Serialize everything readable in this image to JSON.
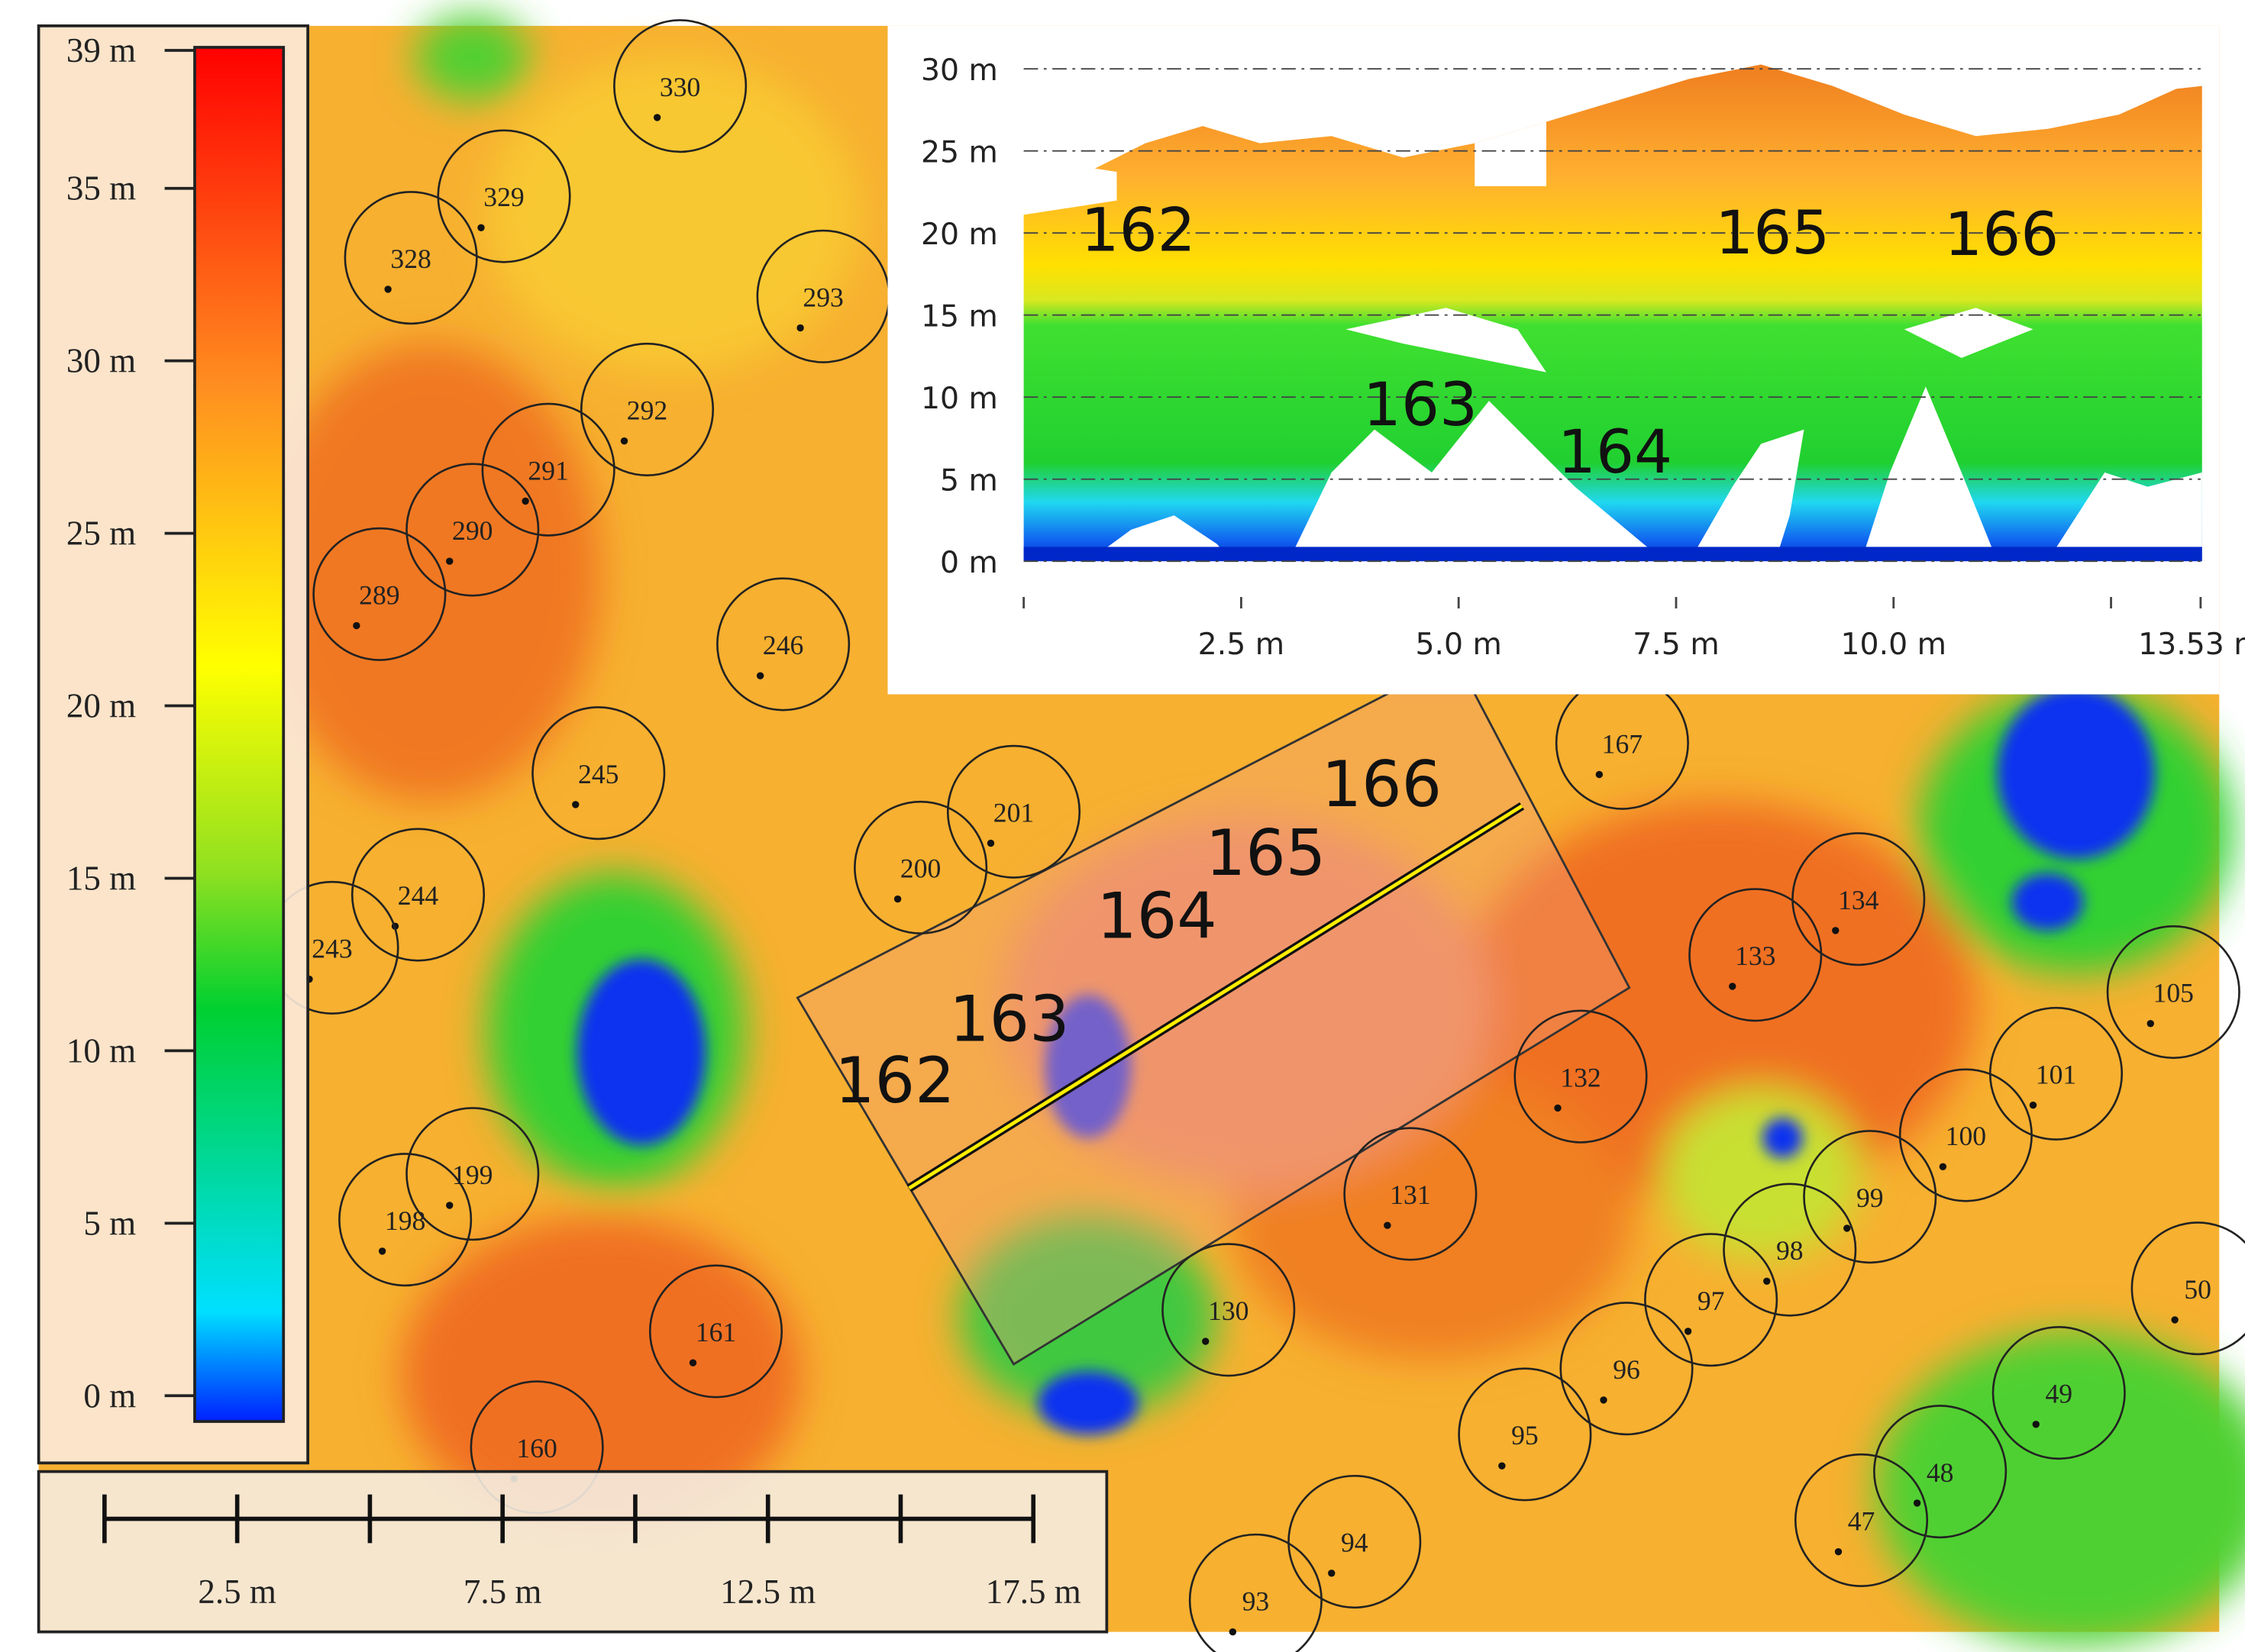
{
  "legend": {
    "ticks": [
      {
        "value": 39,
        "label": "39 m"
      },
      {
        "value": 35,
        "label": "35 m"
      },
      {
        "value": 30,
        "label": "30 m"
      },
      {
        "value": 25,
        "label": "25 m"
      },
      {
        "value": 20,
        "label": "20 m"
      },
      {
        "value": 15,
        "label": "15 m"
      },
      {
        "value": 10,
        "label": "10 m"
      },
      {
        "value": 5,
        "label": "5 m"
      },
      {
        "value": 0,
        "label": "0 m"
      }
    ]
  },
  "scale_bar": {
    "ticks": [
      0,
      2.5,
      5,
      7.5,
      10,
      12.5,
      15,
      17.5
    ],
    "labels": [
      {
        "value": 2.5,
        "label": "2.5 m"
      },
      {
        "value": 7.5,
        "label": "7.5 m"
      },
      {
        "value": 12.5,
        "label": "12.5 m"
      },
      {
        "value": 17.5,
        "label": "17.5 m"
      }
    ]
  },
  "trees": [
    "330",
    "329",
    "328",
    "293",
    "292",
    "291",
    "290",
    "289",
    "246",
    "245",
    "244",
    "243",
    "201",
    "200",
    "199",
    "198",
    "161",
    "160",
    "167",
    "134",
    "133",
    "132",
    "131",
    "130",
    "105",
    "101",
    "100",
    "99",
    "98",
    "97",
    "96",
    "95",
    "94",
    "93",
    "50",
    "49",
    "48",
    "47"
  ],
  "transect": {
    "labels": [
      "162",
      "163",
      "164",
      "165",
      "166"
    ]
  },
  "profile": {
    "ylim": [
      0,
      30
    ],
    "yticks": [
      {
        "value": 30,
        "label": "30 m"
      },
      {
        "value": 25,
        "label": "25 m"
      },
      {
        "value": 20,
        "label": "20 m"
      },
      {
        "value": 15,
        "label": "15 m"
      },
      {
        "value": 10,
        "label": "10 m"
      },
      {
        "value": 5,
        "label": "5 m"
      },
      {
        "value": 0,
        "label": "0 m"
      }
    ],
    "xlim": [
      0,
      13.53
    ],
    "xticks": [
      0,
      2.5,
      5,
      7.5,
      10,
      12.5,
      13.53
    ],
    "xlabels": [
      {
        "value": 2.5,
        "label": "2.5 m"
      },
      {
        "value": 5,
        "label": "5.0 m"
      },
      {
        "value": 7.5,
        "label": "7.5 m"
      },
      {
        "value": 10,
        "label": "10.0 m"
      },
      {
        "value": 13.53,
        "label": "13.53 m"
      }
    ],
    "labels": [
      "162",
      "165",
      "166",
      "163",
      "164"
    ]
  }
}
